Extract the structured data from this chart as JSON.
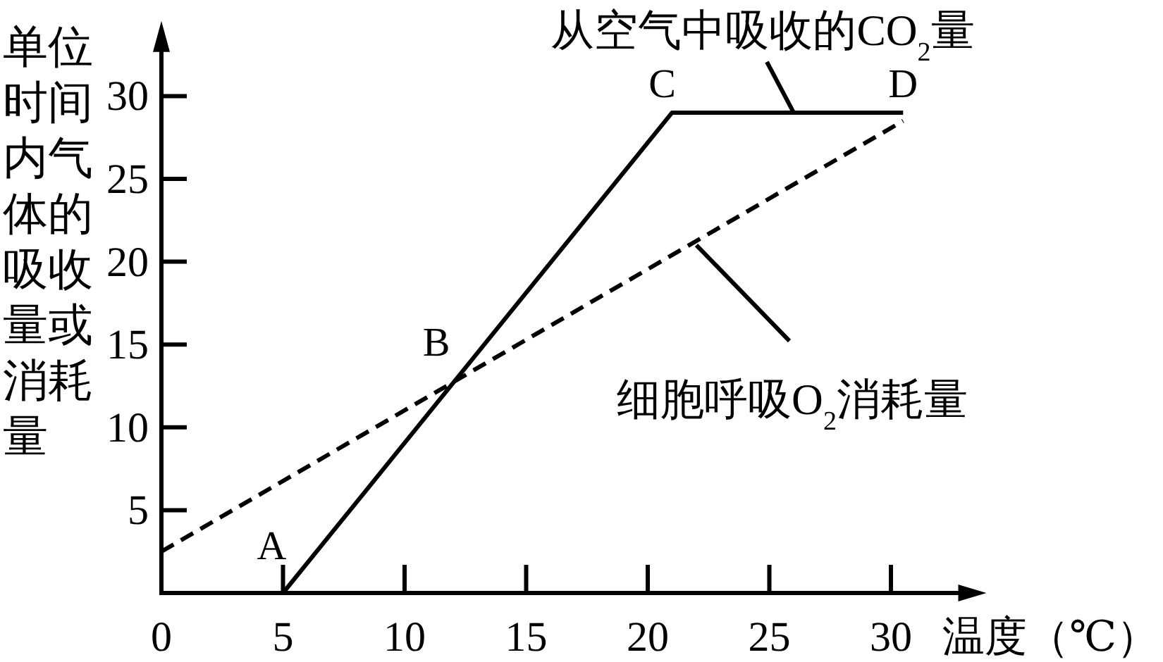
{
  "chart_data": {
    "type": "line",
    "xlabel": "温度（℃）",
    "ylabel": "单位时间内气体的吸收量或消耗量",
    "xlim": [
      0,
      33
    ],
    "ylim": [
      0,
      33
    ],
    "xticks": [
      0,
      5,
      10,
      15,
      20,
      25,
      30
    ],
    "yticks": [
      5,
      10,
      15,
      20,
      25,
      30
    ],
    "series": [
      {
        "color": "#000000",
        "line_style": "solid",
        "x": [
          5,
          21,
          30.5
        ],
        "values": [
          0,
          29,
          29
        ]
      },
      {
        "color": "#000000",
        "line_style": "dashed",
        "x": [
          0,
          30.5
        ],
        "values": [
          2.5,
          28.5
        ]
      }
    ],
    "annotations": [
      {
        "text": "A",
        "x": 5,
        "y": 0
      },
      {
        "text": "B",
        "x": 12,
        "y": 12.8
      },
      {
        "text": "C",
        "x": 21,
        "y": 29
      },
      {
        "text": "D",
        "x": 30.5,
        "y": 29
      },
      {
        "text": "从空气中吸收的CO$_{2}$量",
        "x": 26,
        "y": 29
      },
      {
        "text": "细胞呼吸O$_{2}$消耗量",
        "x": 22,
        "y": 21
      }
    ]
  }
}
